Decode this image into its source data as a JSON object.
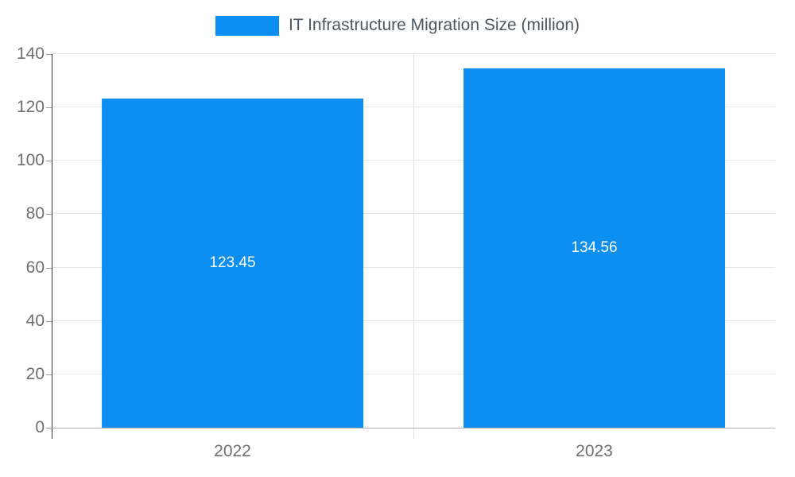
{
  "legend": {
    "label": "IT Infrastructure Migration Size (million)"
  },
  "colors": {
    "bar": "#0d8ff2",
    "bar_label": "#ffffff",
    "grid": "#e6e6e6",
    "axis_text": "#6e6e6e"
  },
  "chart_data": {
    "type": "bar",
    "categories": [
      "2022",
      "2023"
    ],
    "series": [
      {
        "name": "IT Infrastructure Migration Size (million)",
        "values": [
          123.45,
          134.56
        ]
      }
    ],
    "data_labels": [
      "123.45",
      "134.56"
    ],
    "title": "",
    "xlabel": "",
    "ylabel": "",
    "ylim": [
      0,
      140
    ],
    "yticks": [
      0,
      20,
      40,
      60,
      80,
      100,
      120,
      140
    ],
    "grid": true,
    "legend_position": "top"
  }
}
